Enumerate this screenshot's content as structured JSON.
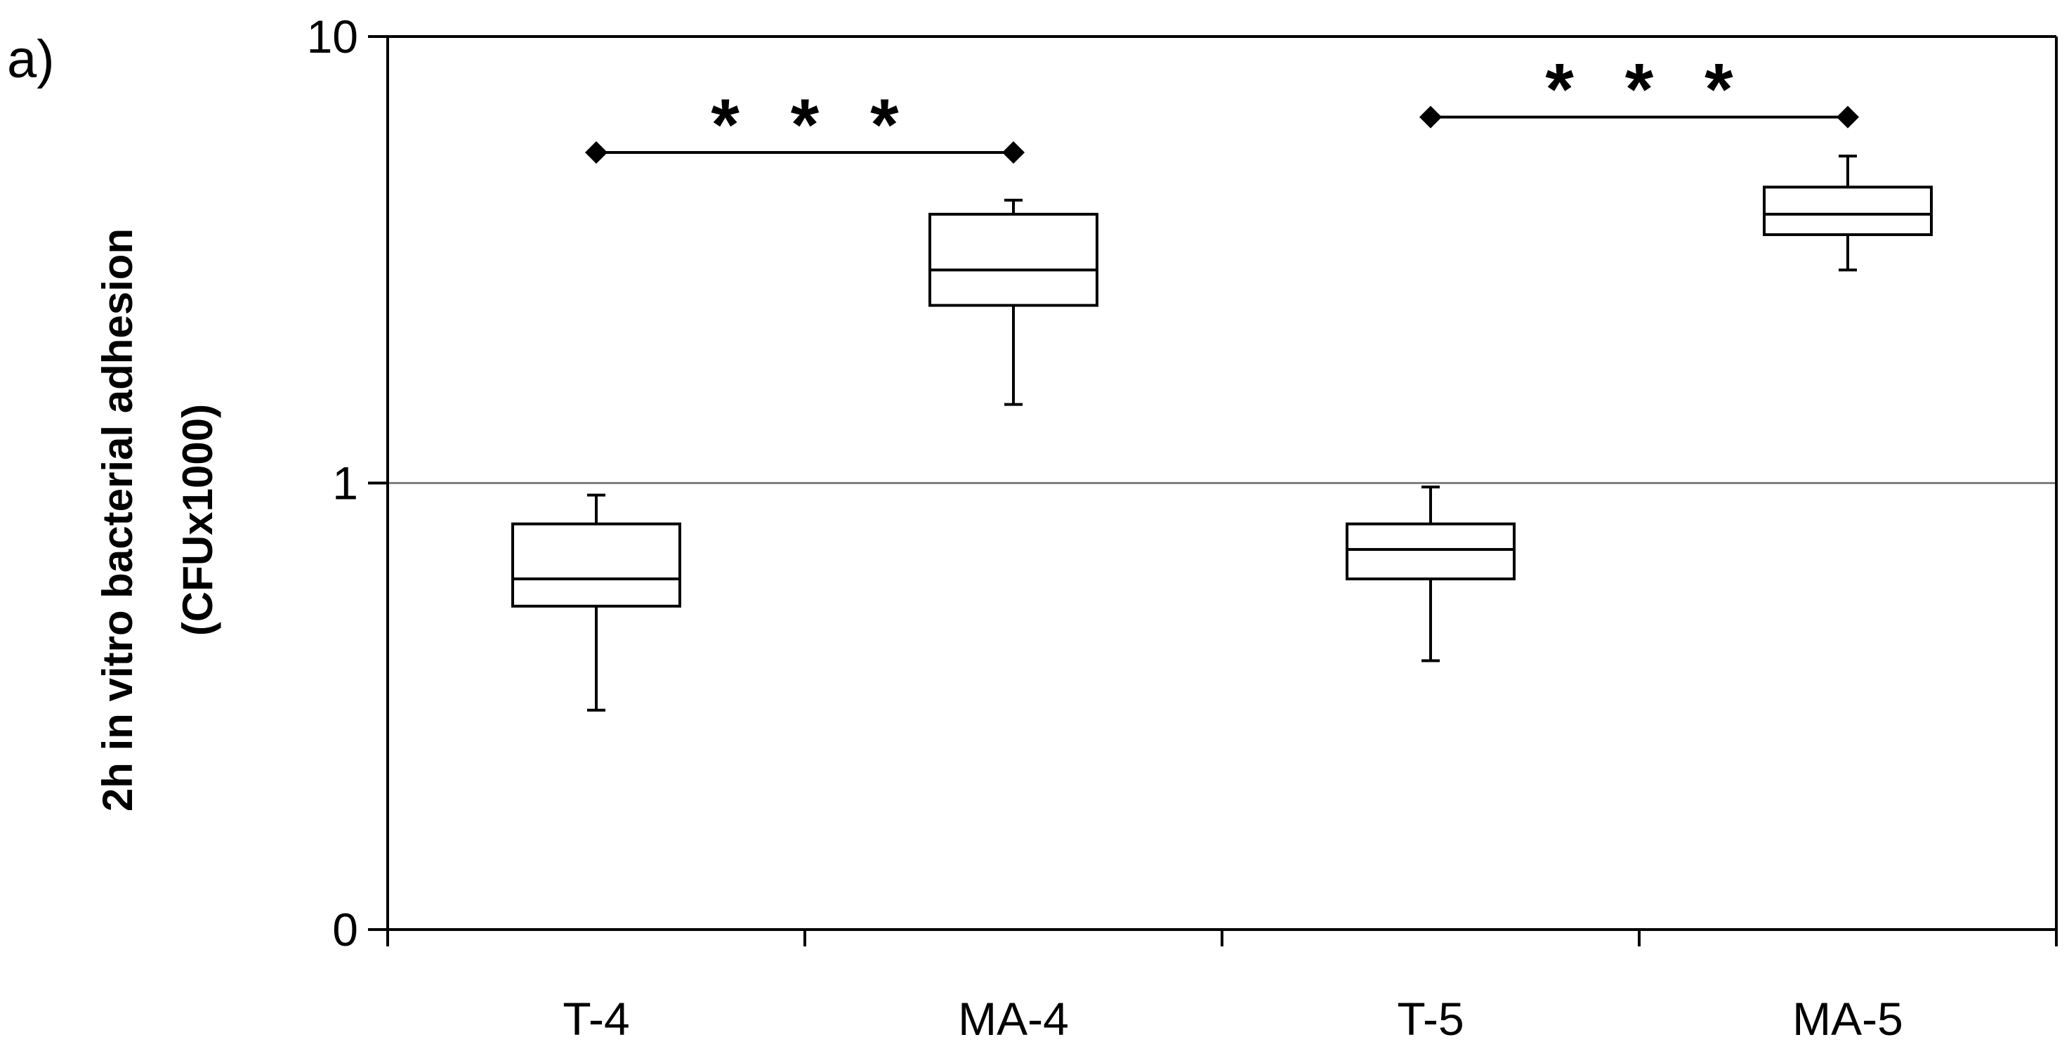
{
  "chart_data": {
    "type": "box",
    "panel_label": "a)",
    "ylabel_line1": "2h in vitro bacterial adhesion",
    "ylabel_line2": "(CFUx1000)",
    "yscale": "log",
    "ylim_labels": [
      "0",
      "1",
      "10"
    ],
    "yticks": [
      {
        "label": "10",
        "value": 10
      },
      {
        "label": "1",
        "value": 1
      },
      {
        "label": "0",
        "value": 0.1
      }
    ],
    "reference_line": 1,
    "categories": [
      "T-4",
      "MA-4",
      "T-5",
      "MA-5"
    ],
    "boxes": [
      {
        "category": "T-4",
        "whisker_low": 0.31,
        "q1": 0.53,
        "median": 0.61,
        "q3": 0.81,
        "whisker_high": 0.94
      },
      {
        "category": "MA-4",
        "whisker_low": 1.5,
        "q1": 2.5,
        "median": 3.0,
        "q3": 4.0,
        "whisker_high": 4.3
      },
      {
        "category": "T-5",
        "whisker_low": 0.4,
        "q1": 0.61,
        "median": 0.71,
        "q3": 0.81,
        "whisker_high": 0.98
      },
      {
        "category": "MA-5",
        "whisker_low": 3.0,
        "q1": 3.6,
        "median": 4.0,
        "q3": 4.6,
        "whisker_high": 5.4
      }
    ],
    "significance": [
      {
        "from": "T-4",
        "to": "MA-4",
        "y": 5.5,
        "label": "* * *"
      },
      {
        "from": "T-5",
        "to": "MA-5",
        "y": 6.6,
        "label": "* * *"
      }
    ],
    "colors": {
      "box_line": "#000000",
      "reference_line": "#808080",
      "axis": "#000000"
    }
  }
}
